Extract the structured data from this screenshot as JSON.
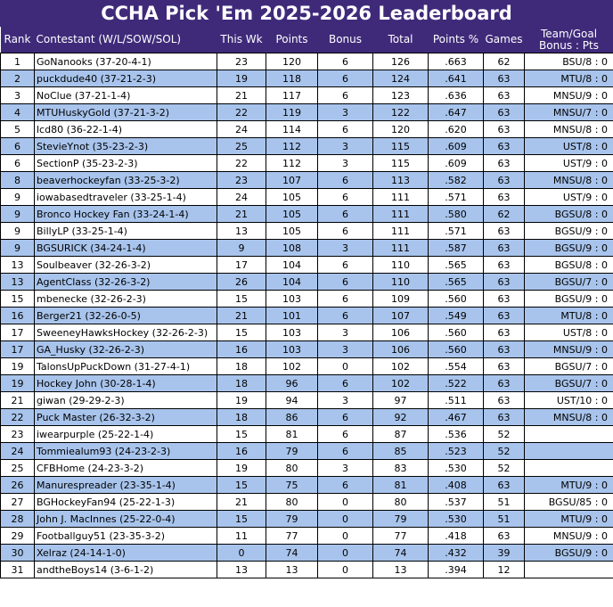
{
  "title": "CCHA Pick 'Em 2025-2026 Leaderboard",
  "colors": {
    "header_bg": "#3f2a7a",
    "header_text": "#ffffff",
    "alt_row": "#a8c4ec"
  },
  "columns": {
    "rank": "Rank",
    "contestant": "Contestant (W/L/SOW/SOL)",
    "this_wk": "This Wk",
    "points": "Points",
    "bonus": "Bonus",
    "total": "Total",
    "points_pct": "Points %",
    "games": "Games",
    "team_goal_1": "Team/Goal",
    "team_goal_2": "Bonus : Pts"
  },
  "rows": [
    {
      "rank": "1",
      "contestant": "GoNanooks (37-20-4-1)",
      "this_wk": "23",
      "points": "120",
      "bonus": "6",
      "total": "126",
      "pct": ".663",
      "games": "62",
      "tgb": "BSU/8 : 0"
    },
    {
      "rank": "2",
      "contestant": "puckdude40 (37-21-2-3)",
      "this_wk": "19",
      "points": "118",
      "bonus": "6",
      "total": "124",
      "pct": ".641",
      "games": "63",
      "tgb": "MTU/8 : 0"
    },
    {
      "rank": "3",
      "contestant": "NoClue (37-21-1-4)",
      "this_wk": "21",
      "points": "117",
      "bonus": "6",
      "total": "123",
      "pct": ".636",
      "games": "63",
      "tgb": "MNSU/9 : 0"
    },
    {
      "rank": "4",
      "contestant": "MTUHuskyGold (37-21-3-2)",
      "this_wk": "22",
      "points": "119",
      "bonus": "3",
      "total": "122",
      "pct": ".647",
      "games": "63",
      "tgb": "MNSU/7 : 0"
    },
    {
      "rank": "5",
      "contestant": "lcd80 (36-22-1-4)",
      "this_wk": "24",
      "points": "114",
      "bonus": "6",
      "total": "120",
      "pct": ".620",
      "games": "63",
      "tgb": "MNSU/8 : 0"
    },
    {
      "rank": "6",
      "contestant": "StevieYnot (35-23-2-3)",
      "this_wk": "25",
      "points": "112",
      "bonus": "3",
      "total": "115",
      "pct": ".609",
      "games": "63",
      "tgb": "UST/8 : 0"
    },
    {
      "rank": "6",
      "contestant": "SectionP (35-23-2-3)",
      "this_wk": "22",
      "points": "112",
      "bonus": "3",
      "total": "115",
      "pct": ".609",
      "games": "63",
      "tgb": "UST/9 : 0"
    },
    {
      "rank": "8",
      "contestant": "beaverhockeyfan (33-25-3-2)",
      "this_wk": "23",
      "points": "107",
      "bonus": "6",
      "total": "113",
      "pct": ".582",
      "games": "63",
      "tgb": "MNSU/8 : 0"
    },
    {
      "rank": "9",
      "contestant": "iowabasedtraveler (33-25-1-4)",
      "this_wk": "24",
      "points": "105",
      "bonus": "6",
      "total": "111",
      "pct": ".571",
      "games": "63",
      "tgb": "UST/9 : 0"
    },
    {
      "rank": "9",
      "contestant": "Bronco Hockey Fan (33-24-1-4)",
      "this_wk": "21",
      "points": "105",
      "bonus": "6",
      "total": "111",
      "pct": ".580",
      "games": "62",
      "tgb": "BGSU/8 : 0"
    },
    {
      "rank": "9",
      "contestant": "BillyLP (33-25-1-4)",
      "this_wk": "13",
      "points": "105",
      "bonus": "6",
      "total": "111",
      "pct": ".571",
      "games": "63",
      "tgb": "BGSU/9 : 0"
    },
    {
      "rank": "9",
      "contestant": "BGSURICK (34-24-1-4)",
      "this_wk": "9",
      "points": "108",
      "bonus": "3",
      "total": "111",
      "pct": ".587",
      "games": "63",
      "tgb": "BGSU/9 : 0"
    },
    {
      "rank": "13",
      "contestant": "Soulbeaver (32-26-3-2)",
      "this_wk": "17",
      "points": "104",
      "bonus": "6",
      "total": "110",
      "pct": ".565",
      "games": "63",
      "tgb": "BGSU/8 : 0"
    },
    {
      "rank": "13",
      "contestant": "AgentClass (32-26-3-2)",
      "this_wk": "26",
      "points": "104",
      "bonus": "6",
      "total": "110",
      "pct": ".565",
      "games": "63",
      "tgb": "BGSU/7 : 0"
    },
    {
      "rank": "15",
      "contestant": "mbenecke (32-26-2-3)",
      "this_wk": "15",
      "points": "103",
      "bonus": "6",
      "total": "109",
      "pct": ".560",
      "games": "63",
      "tgb": "BGSU/9 : 0"
    },
    {
      "rank": "16",
      "contestant": "Berger21 (32-26-0-5)",
      "this_wk": "21",
      "points": "101",
      "bonus": "6",
      "total": "107",
      "pct": ".549",
      "games": "63",
      "tgb": "MTU/8 : 0"
    },
    {
      "rank": "17",
      "contestant": "SweeneyHawksHockey (32-26-2-3)",
      "this_wk": "15",
      "points": "103",
      "bonus": "3",
      "total": "106",
      "pct": ".560",
      "games": "63",
      "tgb": "UST/8 : 0"
    },
    {
      "rank": "17",
      "contestant": "GA_Husky (32-26-2-3)",
      "this_wk": "16",
      "points": "103",
      "bonus": "3",
      "total": "106",
      "pct": ".560",
      "games": "63",
      "tgb": "MNSU/9 : 0"
    },
    {
      "rank": "19",
      "contestant": "TalonsUpPuckDown (31-27-4-1)",
      "this_wk": "18",
      "points": "102",
      "bonus": "0",
      "total": "102",
      "pct": ".554",
      "games": "63",
      "tgb": "BGSU/7 : 0"
    },
    {
      "rank": "19",
      "contestant": "Hockey John (30-28-1-4)",
      "this_wk": "18",
      "points": "96",
      "bonus": "6",
      "total": "102",
      "pct": ".522",
      "games": "63",
      "tgb": "BGSU/7 : 0"
    },
    {
      "rank": "21",
      "contestant": "giwan (29-29-2-3)",
      "this_wk": "19",
      "points": "94",
      "bonus": "3",
      "total": "97",
      "pct": ".511",
      "games": "63",
      "tgb": "UST/10 : 0"
    },
    {
      "rank": "22",
      "contestant": "Puck Master (26-32-3-2)",
      "this_wk": "18",
      "points": "86",
      "bonus": "6",
      "total": "92",
      "pct": ".467",
      "games": "63",
      "tgb": "MNSU/8 : 0"
    },
    {
      "rank": "23",
      "contestant": "iwearpurple (25-22-1-4)",
      "this_wk": "15",
      "points": "81",
      "bonus": "6",
      "total": "87",
      "pct": ".536",
      "games": "52",
      "tgb": ""
    },
    {
      "rank": "24",
      "contestant": "Tommiealum93 (24-23-2-3)",
      "this_wk": "16",
      "points": "79",
      "bonus": "6",
      "total": "85",
      "pct": ".523",
      "games": "52",
      "tgb": ""
    },
    {
      "rank": "25",
      "contestant": "CFBHome (24-23-3-2)",
      "this_wk": "19",
      "points": "80",
      "bonus": "3",
      "total": "83",
      "pct": ".530",
      "games": "52",
      "tgb": ""
    },
    {
      "rank": "26",
      "contestant": "Manurespreader (23-35-1-4)",
      "this_wk": "15",
      "points": "75",
      "bonus": "6",
      "total": "81",
      "pct": ".408",
      "games": "63",
      "tgb": "MTU/9 : 0"
    },
    {
      "rank": "27",
      "contestant": "BGHockeyFan94 (25-22-1-3)",
      "this_wk": "21",
      "points": "80",
      "bonus": "0",
      "total": "80",
      "pct": ".537",
      "games": "51",
      "tgb": "BGSU/85 : 0"
    },
    {
      "rank": "28",
      "contestant": "John J. MacInnes (25-22-0-4)",
      "this_wk": "15",
      "points": "79",
      "bonus": "0",
      "total": "79",
      "pct": ".530",
      "games": "51",
      "tgb": "MTU/9 : 0"
    },
    {
      "rank": "29",
      "contestant": "Footballguy51 (23-35-3-2)",
      "this_wk": "11",
      "points": "77",
      "bonus": "0",
      "total": "77",
      "pct": ".418",
      "games": "63",
      "tgb": "MNSU/9 : 0"
    },
    {
      "rank": "30",
      "contestant": "Xelraz (24-14-1-0)",
      "this_wk": "0",
      "points": "74",
      "bonus": "0",
      "total": "74",
      "pct": ".432",
      "games": "39",
      "tgb": "BGSU/9 : 0"
    },
    {
      "rank": "31",
      "contestant": "andtheBoys14 (3-6-1-2)",
      "this_wk": "13",
      "points": "13",
      "bonus": "0",
      "total": "13",
      "pct": ".394",
      "games": "12",
      "tgb": ""
    }
  ]
}
